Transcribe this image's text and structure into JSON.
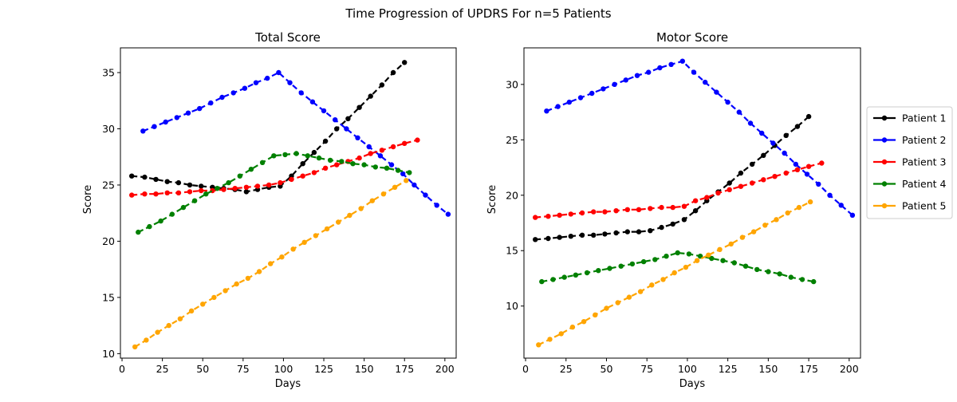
{
  "figure": {
    "suptitle": "Time Progression of UPDRS For n=5 Patients"
  },
  "chart_data": [
    {
      "type": "line",
      "title": "Total Score",
      "xlabel": "Days",
      "ylabel": "Score",
      "xlim": [
        -1,
        207
      ],
      "ylim": [
        9.6,
        37.2
      ],
      "xticks": [
        0,
        25,
        50,
        75,
        100,
        125,
        150,
        175,
        200
      ],
      "yticks": [
        10,
        15,
        20,
        25,
        30,
        35
      ],
      "grid": false,
      "series": [
        {
          "name": "Patient 1",
          "color": "#000000",
          "x": [
            6,
            14,
            21,
            28,
            35,
            42,
            49,
            56,
            63,
            70,
            77,
            84,
            91,
            98,
            105,
            112,
            119,
            126,
            133,
            140,
            147,
            154,
            161,
            168,
            175
          ],
          "y": [
            25.8,
            25.7,
            25.5,
            25.3,
            25.2,
            25.0,
            24.9,
            24.8,
            24.7,
            24.6,
            24.4,
            24.6,
            24.8,
            24.9,
            25.8,
            26.9,
            27.9,
            28.9,
            30.0,
            30.9,
            31.9,
            32.9,
            33.9,
            35.0,
            35.9
          ]
        },
        {
          "name": "Patient 2",
          "color": "#0000ff",
          "x": [
            13,
            20,
            27,
            34,
            41,
            48,
            55,
            62,
            69,
            76,
            83,
            90,
            97,
            104,
            111,
            118,
            125,
            132,
            139,
            146,
            153,
            160,
            167,
            174,
            181,
            188,
            195,
            202
          ],
          "y": [
            29.8,
            30.2,
            30.6,
            31.0,
            31.4,
            31.8,
            32.3,
            32.8,
            33.2,
            33.6,
            34.1,
            34.5,
            35.0,
            34.1,
            33.2,
            32.4,
            31.6,
            30.8,
            30.0,
            29.2,
            28.4,
            27.6,
            26.8,
            26.0,
            25.0,
            24.1,
            23.2,
            22.4
          ]
        },
        {
          "name": "Patient 3",
          "color": "#ff0000",
          "x": [
            6,
            14,
            21,
            28,
            35,
            42,
            49,
            56,
            63,
            70,
            77,
            84,
            91,
            98,
            105,
            112,
            119,
            126,
            133,
            140,
            147,
            154,
            161,
            168,
            175,
            183
          ],
          "y": [
            24.1,
            24.2,
            24.2,
            24.3,
            24.3,
            24.4,
            24.5,
            24.5,
            24.6,
            24.7,
            24.8,
            24.9,
            25.0,
            25.2,
            25.5,
            25.8,
            26.1,
            26.5,
            26.8,
            27.1,
            27.4,
            27.8,
            28.1,
            28.4,
            28.7,
            29.0
          ]
        },
        {
          "name": "Patient 4",
          "color": "#008000",
          "x": [
            10,
            17,
            24,
            31,
            38,
            45,
            52,
            59,
            66,
            73,
            80,
            87,
            94,
            101,
            108,
            115,
            122,
            129,
            136,
            143,
            150,
            157,
            164,
            171,
            178
          ],
          "y": [
            20.8,
            21.3,
            21.8,
            22.4,
            23.0,
            23.6,
            24.2,
            24.7,
            25.2,
            25.8,
            26.4,
            27.0,
            27.6,
            27.7,
            27.8,
            27.6,
            27.4,
            27.2,
            27.1,
            26.9,
            26.8,
            26.6,
            26.5,
            26.3,
            26.1
          ]
        },
        {
          "name": "Patient 5",
          "color": "#ffa500",
          "x": [
            8,
            15,
            22,
            29,
            36,
            43,
            50,
            57,
            64,
            71,
            78,
            85,
            92,
            99,
            106,
            113,
            120,
            127,
            134,
            141,
            148,
            155,
            162,
            169,
            176
          ],
          "y": [
            10.6,
            11.2,
            11.9,
            12.5,
            13.1,
            13.8,
            14.4,
            15.0,
            15.6,
            16.2,
            16.7,
            17.3,
            18.0,
            18.6,
            19.3,
            19.9,
            20.5,
            21.1,
            21.7,
            22.3,
            22.9,
            23.6,
            24.2,
            24.8,
            25.4
          ]
        }
      ]
    },
    {
      "type": "line",
      "title": "Motor Score",
      "xlabel": "Days",
      "ylabel": "Score",
      "xlim": [
        -1,
        207
      ],
      "ylim": [
        5.3,
        33.3
      ],
      "xticks": [
        0,
        25,
        50,
        75,
        100,
        125,
        150,
        175,
        200
      ],
      "yticks": [
        10,
        15,
        20,
        25,
        30
      ],
      "grid": false,
      "legend": "outside-right",
      "series": [
        {
          "name": "Patient 1",
          "color": "#000000",
          "x": [
            6,
            14,
            21,
            28,
            35,
            42,
            49,
            56,
            63,
            70,
            77,
            84,
            91,
            98,
            105,
            112,
            119,
            126,
            133,
            140,
            147,
            154,
            161,
            168,
            175
          ],
          "y": [
            16.0,
            16.1,
            16.2,
            16.3,
            16.4,
            16.4,
            16.5,
            16.6,
            16.7,
            16.7,
            16.8,
            17.1,
            17.4,
            17.8,
            18.6,
            19.5,
            20.3,
            21.1,
            22.0,
            22.8,
            23.6,
            24.5,
            25.4,
            26.2,
            27.1
          ]
        },
        {
          "name": "Patient 2",
          "color": "#0000ff",
          "x": [
            13,
            20,
            27,
            34,
            41,
            48,
            55,
            62,
            69,
            76,
            83,
            90,
            97,
            104,
            111,
            118,
            125,
            132,
            139,
            146,
            153,
            160,
            167,
            174,
            181,
            188,
            195,
            202
          ],
          "y": [
            27.6,
            28.0,
            28.4,
            28.8,
            29.2,
            29.6,
            30.0,
            30.4,
            30.8,
            31.1,
            31.5,
            31.8,
            32.1,
            31.1,
            30.2,
            29.3,
            28.4,
            27.5,
            26.5,
            25.6,
            24.7,
            23.8,
            22.8,
            21.9,
            21.0,
            20.0,
            19.1,
            18.2
          ]
        },
        {
          "name": "Patient 3",
          "color": "#ff0000",
          "x": [
            6,
            14,
            21,
            28,
            35,
            42,
            49,
            56,
            63,
            70,
            77,
            84,
            91,
            98,
            105,
            112,
            119,
            126,
            133,
            140,
            147,
            154,
            161,
            168,
            175,
            183
          ],
          "y": [
            18.0,
            18.1,
            18.2,
            18.3,
            18.4,
            18.5,
            18.5,
            18.6,
            18.7,
            18.7,
            18.8,
            18.9,
            18.9,
            19.0,
            19.5,
            19.8,
            20.2,
            20.5,
            20.8,
            21.1,
            21.4,
            21.7,
            22.0,
            22.3,
            22.6,
            22.9
          ]
        },
        {
          "name": "Patient 4",
          "color": "#008000",
          "x": [
            10,
            17,
            24,
            31,
            38,
            45,
            52,
            59,
            66,
            73,
            80,
            87,
            94,
            101,
            108,
            115,
            122,
            129,
            136,
            143,
            150,
            157,
            164,
            171,
            178
          ],
          "y": [
            12.2,
            12.4,
            12.6,
            12.8,
            13.0,
            13.2,
            13.4,
            13.6,
            13.8,
            14.0,
            14.2,
            14.5,
            14.8,
            14.7,
            14.5,
            14.3,
            14.1,
            13.9,
            13.6,
            13.3,
            13.1,
            12.9,
            12.6,
            12.4,
            12.2
          ]
        },
        {
          "name": "Patient 5",
          "color": "#ffa500",
          "x": [
            8,
            15,
            22,
            29,
            36,
            43,
            50,
            57,
            64,
            71,
            78,
            85,
            92,
            99,
            106,
            113,
            120,
            127,
            134,
            141,
            148,
            155,
            162,
            169,
            176
          ],
          "y": [
            6.5,
            7.0,
            7.5,
            8.1,
            8.6,
            9.2,
            9.8,
            10.3,
            10.8,
            11.3,
            11.9,
            12.4,
            13.0,
            13.5,
            14.1,
            14.6,
            15.1,
            15.6,
            16.2,
            16.7,
            17.3,
            17.8,
            18.4,
            18.9,
            19.4
          ]
        }
      ]
    }
  ]
}
